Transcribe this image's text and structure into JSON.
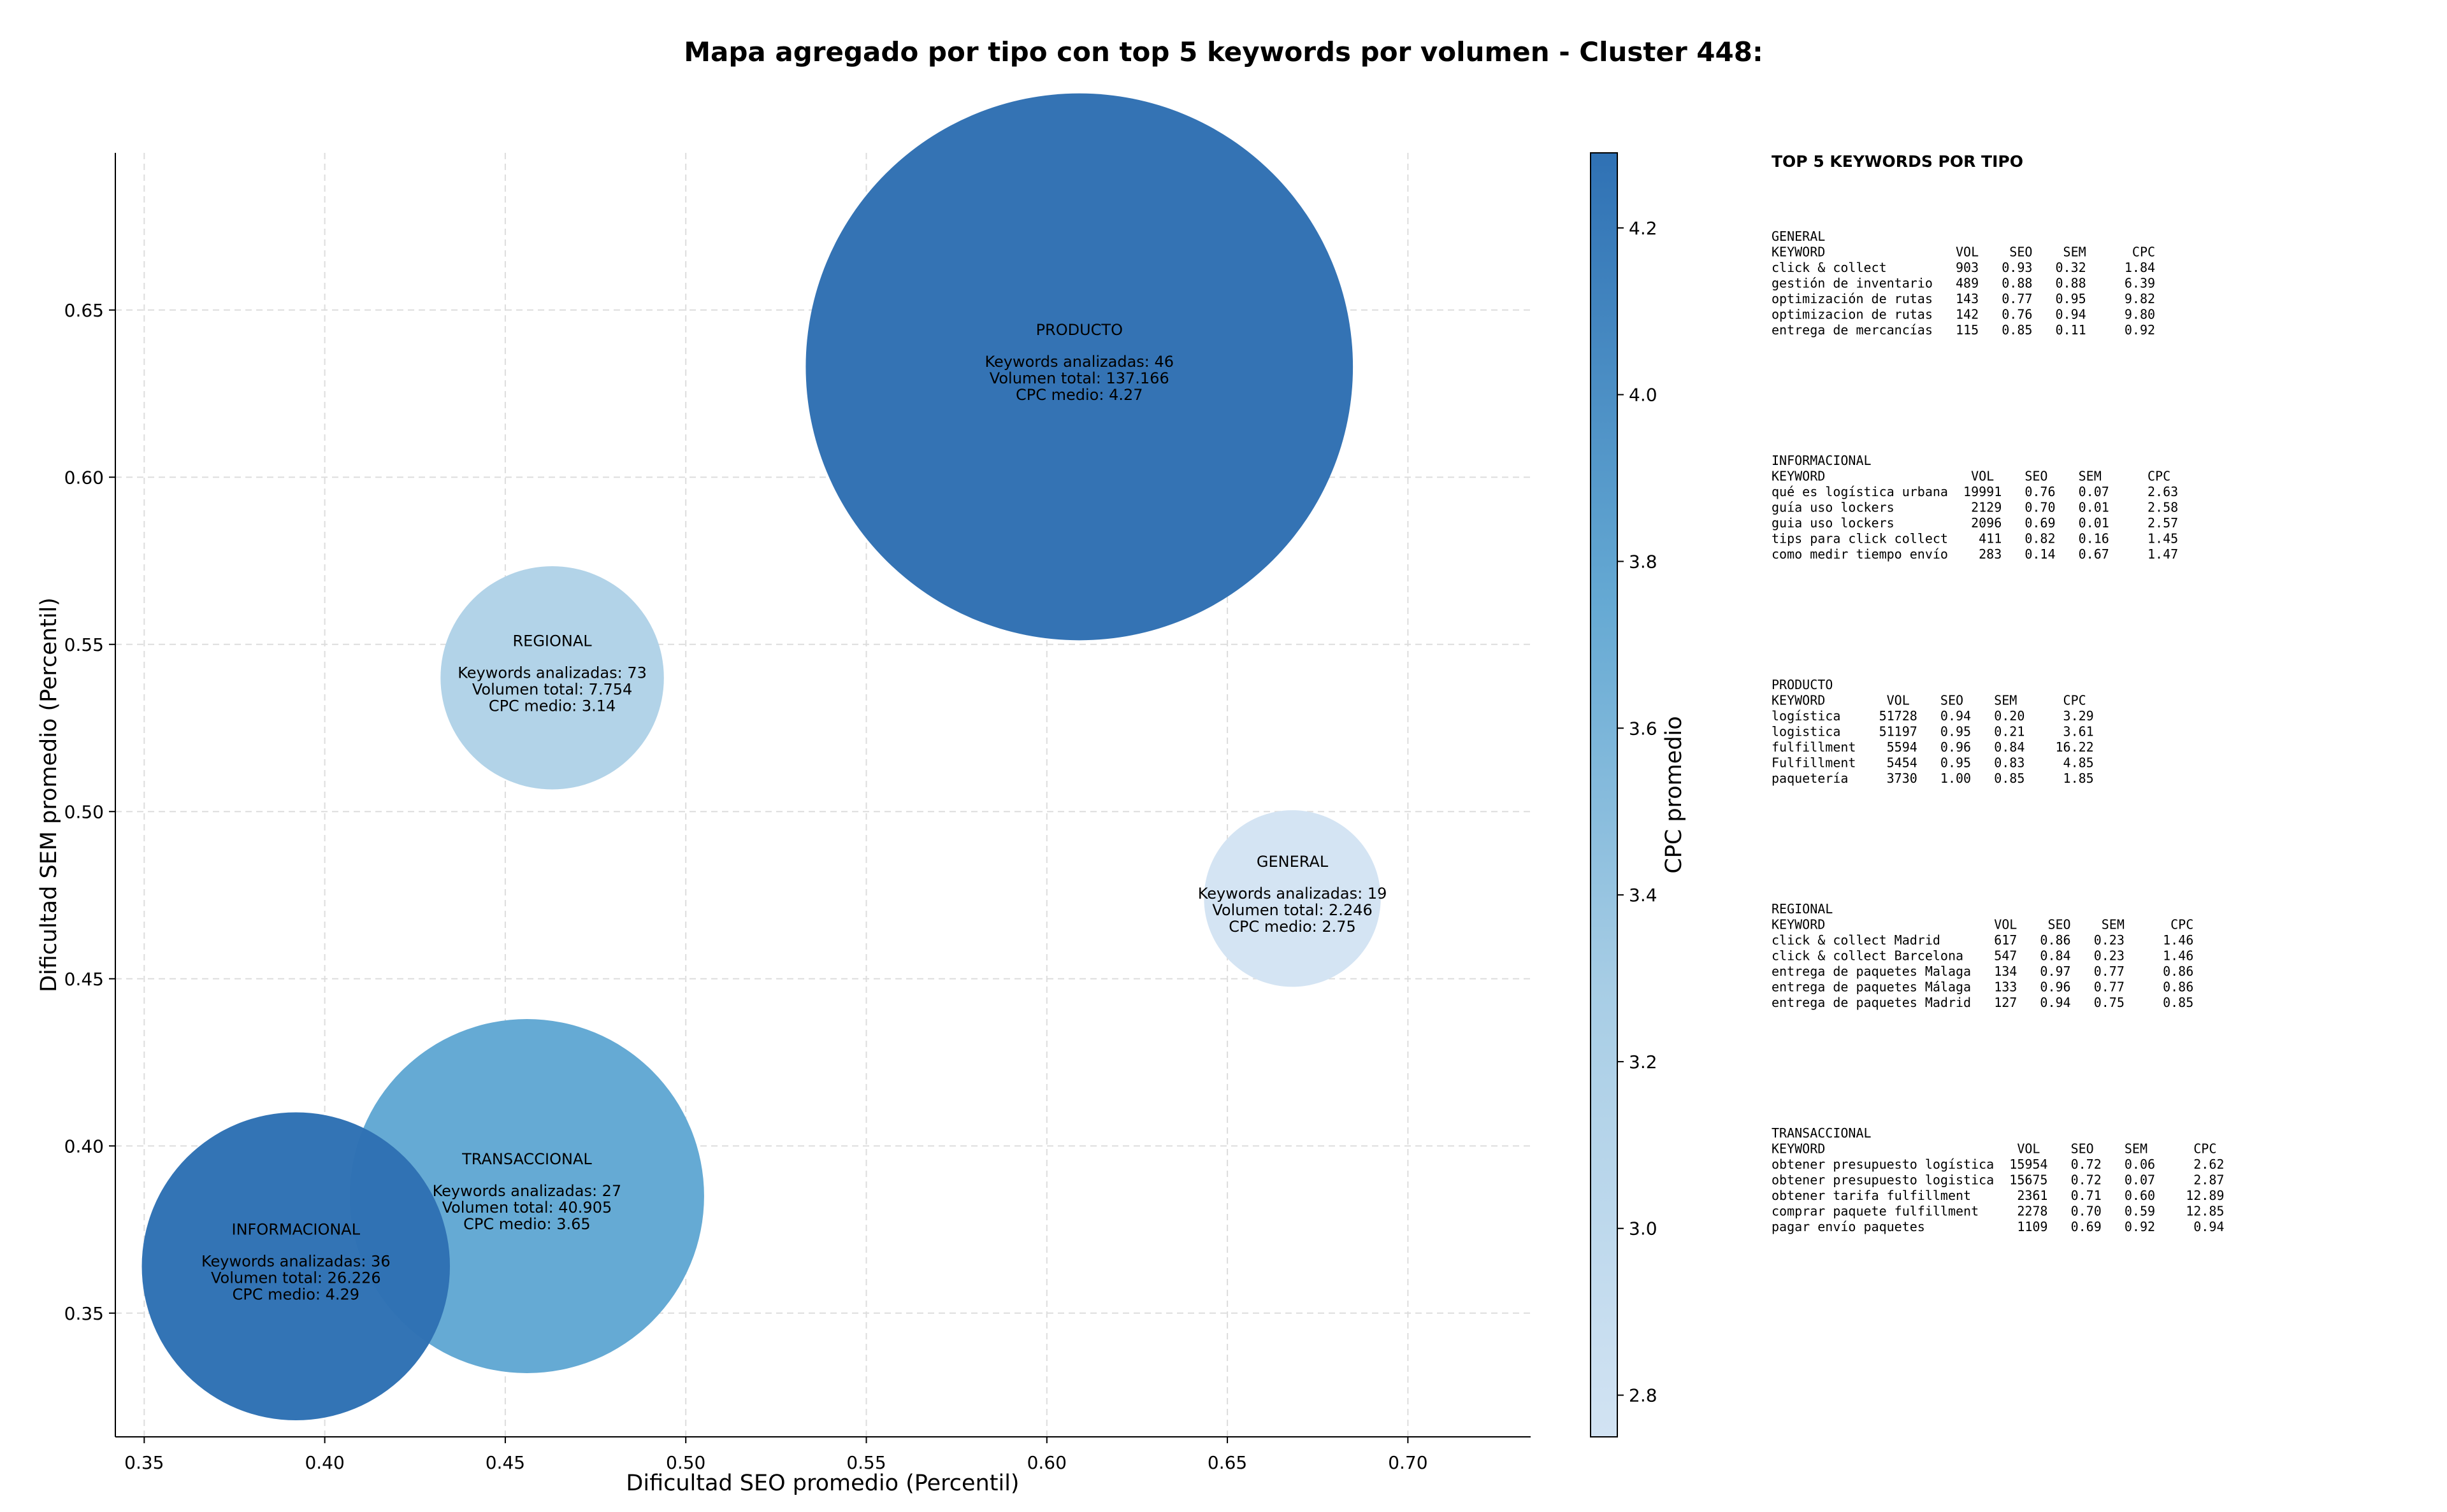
{
  "chart_data": {
    "type": "scatter",
    "title": "Mapa agregado por tipo con top 5 keywords por volumen - Cluster 448:",
    "xlabel": "Dificultad SEO promedio (Percentil)",
    "ylabel": "Dificultad SEM promedio (Percentil)",
    "xlim": [
      0.342,
      0.734
    ],
    "ylim": [
      0.313,
      0.697
    ],
    "xticks": [
      "0.35",
      "0.40",
      "0.45",
      "0.50",
      "0.55",
      "0.60",
      "0.65",
      "0.70"
    ],
    "yticks": [
      "0.35",
      "0.40",
      "0.45",
      "0.50",
      "0.55",
      "0.60",
      "0.65"
    ],
    "grid": true,
    "colorbar": {
      "label": "CPC promedio",
      "min": 2.75,
      "max": 4.29,
      "ticks": [
        "2.8",
        "3.0",
        "3.2",
        "3.4",
        "3.6",
        "3.8",
        "4.0",
        "4.2"
      ],
      "color_low": "#d2e3f3",
      "color_high": "#2f71b4"
    },
    "bubbles": [
      {
        "name": "PRODUCTO",
        "x": 0.609,
        "y": 0.633,
        "keywords": "Keywords analizadas: 46",
        "volume": "Volumen total: 137.166",
        "cpc_label": "CPC medio: 4.27",
        "cpc": 4.27,
        "volume_value": 137166,
        "color": "#3070b3"
      },
      {
        "name": "REGIONAL",
        "x": 0.463,
        "y": 0.54,
        "keywords": "Keywords analizadas: 73",
        "volume": "Volumen total: 7.754",
        "cpc_label": "CPC medio: 3.14",
        "cpc": 3.14,
        "volume_value": 7754,
        "color": "#b0d2e8"
      },
      {
        "name": "GENERAL",
        "x": 0.668,
        "y": 0.474,
        "keywords": "Keywords analizadas: 19",
        "volume": "Volumen total: 2.246",
        "cpc_label": "CPC medio: 2.75",
        "cpc": 2.75,
        "volume_value": 2246,
        "color": "#d3e3f3"
      },
      {
        "name": "TRANSACCIONAL",
        "x": 0.456,
        "y": 0.385,
        "keywords": "Keywords analizadas: 27",
        "volume": "Volumen total: 40.905",
        "cpc_label": "CPC medio: 3.65",
        "cpc": 3.65,
        "volume_value": 40905,
        "color": "#62a8d3"
      },
      {
        "name": "INFORMACIONAL",
        "x": 0.392,
        "y": 0.364,
        "keywords": "Keywords analizadas: 36",
        "volume": "Volumen total: 26.226",
        "cpc_label": "CPC medio: 4.29",
        "cpc": 4.29,
        "volume_value": 26226,
        "color": "#2f71b4"
      }
    ],
    "side_panel": {
      "title": "TOP 5 KEYWORDS POR TIPO",
      "groups": [
        {
          "name": "GENERAL",
          "lines": [
            "KEYWORD                 VOL    SEO    SEM      CPC",
            "click & collect         903   0.93   0.32     1.84",
            "gestión de inventario   489   0.88   0.88     6.39",
            "optimización de rutas   143   0.77   0.95     9.82",
            "optimizacion de rutas   142   0.76   0.94     9.80",
            "entrega de mercancías   115   0.85   0.11     0.92"
          ]
        },
        {
          "name": "INFORMACIONAL",
          "lines": [
            "KEYWORD                   VOL    SEO    SEM      CPC",
            "qué es logística urbana  19991   0.76   0.07     2.63",
            "guía uso lockers          2129   0.70   0.01     2.58",
            "guia uso lockers          2096   0.69   0.01     2.57",
            "tips para click collect    411   0.82   0.16     1.45",
            "como medir tiempo envío    283   0.14   0.67     1.47"
          ]
        },
        {
          "name": "PRODUCTO",
          "lines": [
            "KEYWORD        VOL    SEO    SEM      CPC",
            "logística     51728   0.94   0.20     3.29",
            "logistica     51197   0.95   0.21     3.61",
            "fulfillment    5594   0.96   0.84    16.22",
            "Fulfillment    5454   0.95   0.83     4.85",
            "paquetería     3730   1.00   0.85     1.85"
          ]
        },
        {
          "name": "REGIONAL",
          "lines": [
            "KEYWORD                      VOL    SEO    SEM      CPC",
            "click & collect Madrid       617   0.86   0.23     1.46",
            "click & collect Barcelona    547   0.84   0.23     1.46",
            "entrega de paquetes Malaga   134   0.97   0.77     0.86",
            "entrega de paquetes Málaga   133   0.96   0.77     0.86",
            "entrega de paquetes Madrid   127   0.94   0.75     0.85"
          ]
        },
        {
          "name": "TRANSACCIONAL",
          "lines": [
            "KEYWORD                         VOL    SEO    SEM      CPC",
            "obtener presupuesto logística  15954   0.72   0.06     2.62",
            "obtener presupuesto logistica  15675   0.72   0.07     2.87",
            "obtener tarifa fulfillment      2361   0.71   0.60    12.89",
            "comprar paquete fulfillment     2278   0.70   0.59    12.85",
            "pagar envío paquetes            1109   0.69   0.92     0.94"
          ]
        }
      ]
    }
  }
}
